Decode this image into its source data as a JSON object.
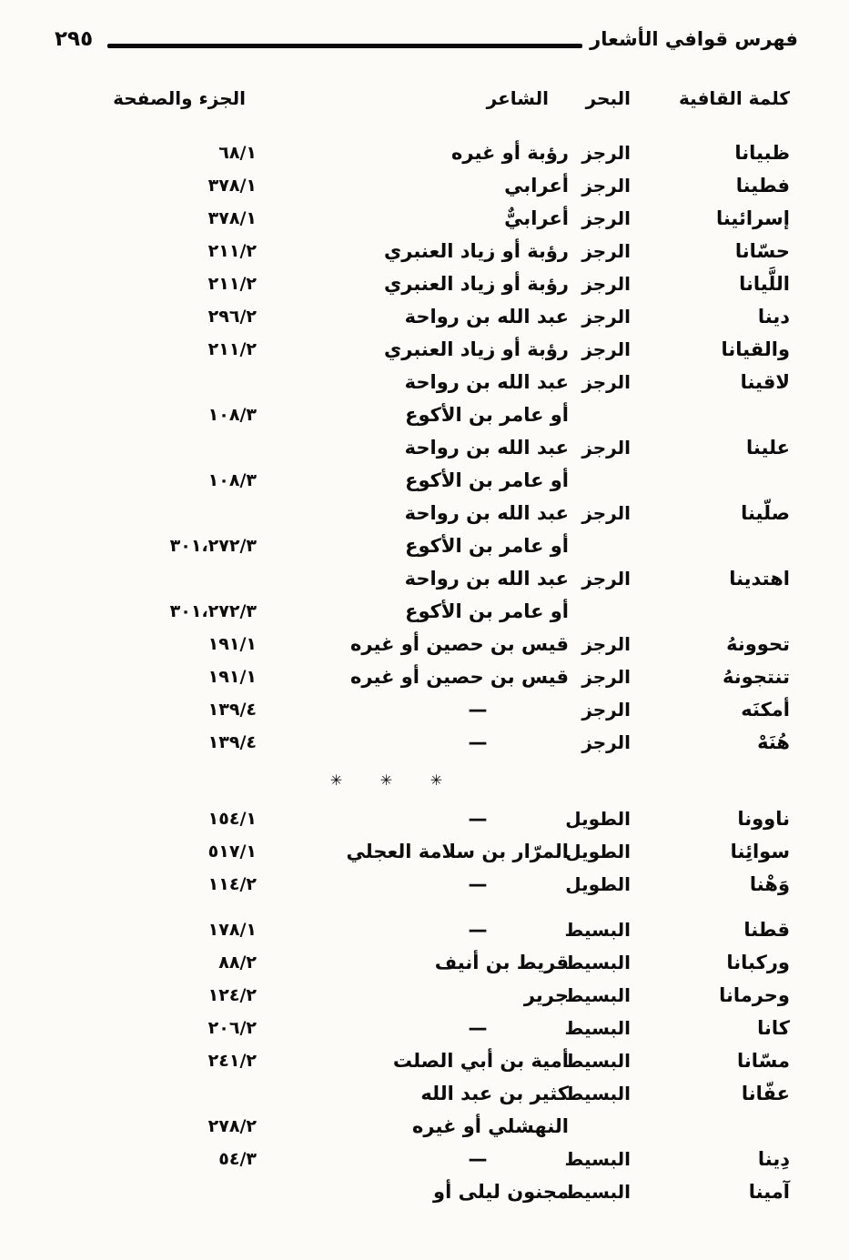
{
  "page": {
    "number": "٢٩٥",
    "header_title": "فهرس قوافي الأشعار"
  },
  "table": {
    "headers": {
      "rhyme": "كلمة القافية",
      "meter": "البحر",
      "poet": "الشاعر",
      "volume_page": "الجزء والصفحة"
    },
    "separator_ornament": "✳ ✳ ✳",
    "sections": [
      {
        "name": "rajaz-section",
        "rows": [
          {
            "rhyme": "ظبيانا",
            "meter": "الرجز",
            "lines": [
              {
                "poet": "رؤبة أو غيره",
                "pages": "٦٨/١"
              }
            ]
          },
          {
            "rhyme": "فطينا",
            "meter": "الرجز",
            "lines": [
              {
                "poet": "أعرابي",
                "pages": "٣٧٨/١"
              }
            ]
          },
          {
            "rhyme": "إسرائينا",
            "meter": "الرجز",
            "lines": [
              {
                "poet": "أعرابيٌّ",
                "pages": "٣٧٨/١"
              }
            ]
          },
          {
            "rhyme": "حسّانا",
            "meter": "الرجز",
            "lines": [
              {
                "poet": "رؤبة أو زياد العنبري",
                "pages": "٢١١/٢"
              }
            ]
          },
          {
            "rhyme": "اللَّيانا",
            "meter": "الرجز",
            "lines": [
              {
                "poet": "رؤبة أو زياد العنبري",
                "pages": "٢١١/٢"
              }
            ]
          },
          {
            "rhyme": "دينا",
            "meter": "الرجز",
            "lines": [
              {
                "poet": "عبد الله بن رواحة",
                "pages": "٢٩٦/٢"
              }
            ]
          },
          {
            "rhyme": "والقيانا",
            "meter": "الرجز",
            "lines": [
              {
                "poet": "رؤبة أو زياد العنبري",
                "pages": "٢١١/٢"
              }
            ]
          },
          {
            "rhyme": "لاقينا",
            "meter": "الرجز",
            "lines": [
              {
                "poet": "عبد الله بن رواحة",
                "pages": ""
              },
              {
                "poet": "أو عامر بن الأكوع",
                "pages": "١٠٨/٣"
              }
            ]
          },
          {
            "rhyme": "علينا",
            "meter": "الرجز",
            "lines": [
              {
                "poet": "عبد الله بن رواحة",
                "pages": ""
              },
              {
                "poet": "أو عامر بن الأكوع",
                "pages": "١٠٨/٣"
              }
            ]
          },
          {
            "rhyme": "صلّينا",
            "meter": "الرجز",
            "lines": [
              {
                "poet": "عبد الله بن رواحة",
                "pages": ""
              },
              {
                "poet": "أو عامر بن الأكوع",
                "pages": "٣٠١،٢٧٢/٣"
              }
            ]
          },
          {
            "rhyme": "اهتدينا",
            "meter": "الرجز",
            "lines": [
              {
                "poet": "عبد الله بن رواحة",
                "pages": ""
              },
              {
                "poet": "أو عامر بن الأكوع",
                "pages": "٣٠١،٢٧٢/٣"
              }
            ]
          },
          {
            "rhyme": "تحوونهُ",
            "meter": "الرجز",
            "lines": [
              {
                "poet": "قيس بن حصين أو غيره",
                "pages": "١٩١/١"
              }
            ]
          },
          {
            "rhyme": "تنتجونهُ",
            "meter": "الرجز",
            "lines": [
              {
                "poet": "قيس بن حصين أو غيره",
                "pages": "١٩١/١"
              }
            ]
          },
          {
            "rhyme": "أمكنَه",
            "meter": "الرجز",
            "lines": [
              {
                "poet": "—",
                "pages": "١٣٩/٤"
              }
            ]
          },
          {
            "rhyme": "هُنَهْ",
            "meter": "الرجز",
            "lines": [
              {
                "poet": "—",
                "pages": "١٣٩/٤"
              }
            ]
          }
        ]
      },
      {
        "separator": "✳ ✳ ✳"
      },
      {
        "name": "tawil-section",
        "rows": [
          {
            "rhyme": "ناوونا",
            "meter": "الطويل",
            "lines": [
              {
                "poet": "—",
                "pages": "١٥٤/١"
              }
            ]
          },
          {
            "rhyme": "سوائِنا",
            "meter": "الطويل",
            "lines": [
              {
                "poet": "المرّار بن سلامة العجلي",
                "pages": "٥١٧/١"
              }
            ]
          },
          {
            "rhyme": "وَهْنا",
            "meter": "الطويل",
            "lines": [
              {
                "poet": "—",
                "pages": "١١٤/٢"
              }
            ]
          }
        ]
      },
      {
        "name": "basit-section",
        "gap_before": true,
        "rows": [
          {
            "rhyme": "قطنا",
            "meter": "البسيط",
            "lines": [
              {
                "poet": "—",
                "pages": "١٧٨/١"
              }
            ]
          },
          {
            "rhyme": "وركبانا",
            "meter": "البسيط",
            "lines": [
              {
                "poet": "قريط بن أنيف",
                "pages": "٨٨/٢"
              }
            ]
          },
          {
            "rhyme": "وحرمانا",
            "meter": "البسيط",
            "lines": [
              {
                "poet": "جرير",
                "pages": "١٢٤/٢"
              }
            ]
          },
          {
            "rhyme": "كانا",
            "meter": "البسيط",
            "lines": [
              {
                "poet": "—",
                "pages": "٢٠٦/٢"
              }
            ]
          },
          {
            "rhyme": "مسّانا",
            "meter": "البسيط",
            "lines": [
              {
                "poet": "أمية بن أبي الصلت",
                "pages": "٢٤١/٢"
              }
            ]
          },
          {
            "rhyme": "عفّانا",
            "meter": "البسيط",
            "lines": [
              {
                "poet": "كثير بن عبد الله",
                "pages": ""
              },
              {
                "poet": "النهشلي أو غيره",
                "pages": "٢٧٨/٢"
              }
            ]
          },
          {
            "rhyme": "دِينا",
            "meter": "البسيط",
            "lines": [
              {
                "poet": "—",
                "pages": "٥٤/٣"
              }
            ]
          },
          {
            "rhyme": "آمينا",
            "meter": "البسيط",
            "lines": [
              {
                "poet": "مجنون ليلى أو",
                "pages": ""
              }
            ]
          }
        ]
      }
    ]
  }
}
